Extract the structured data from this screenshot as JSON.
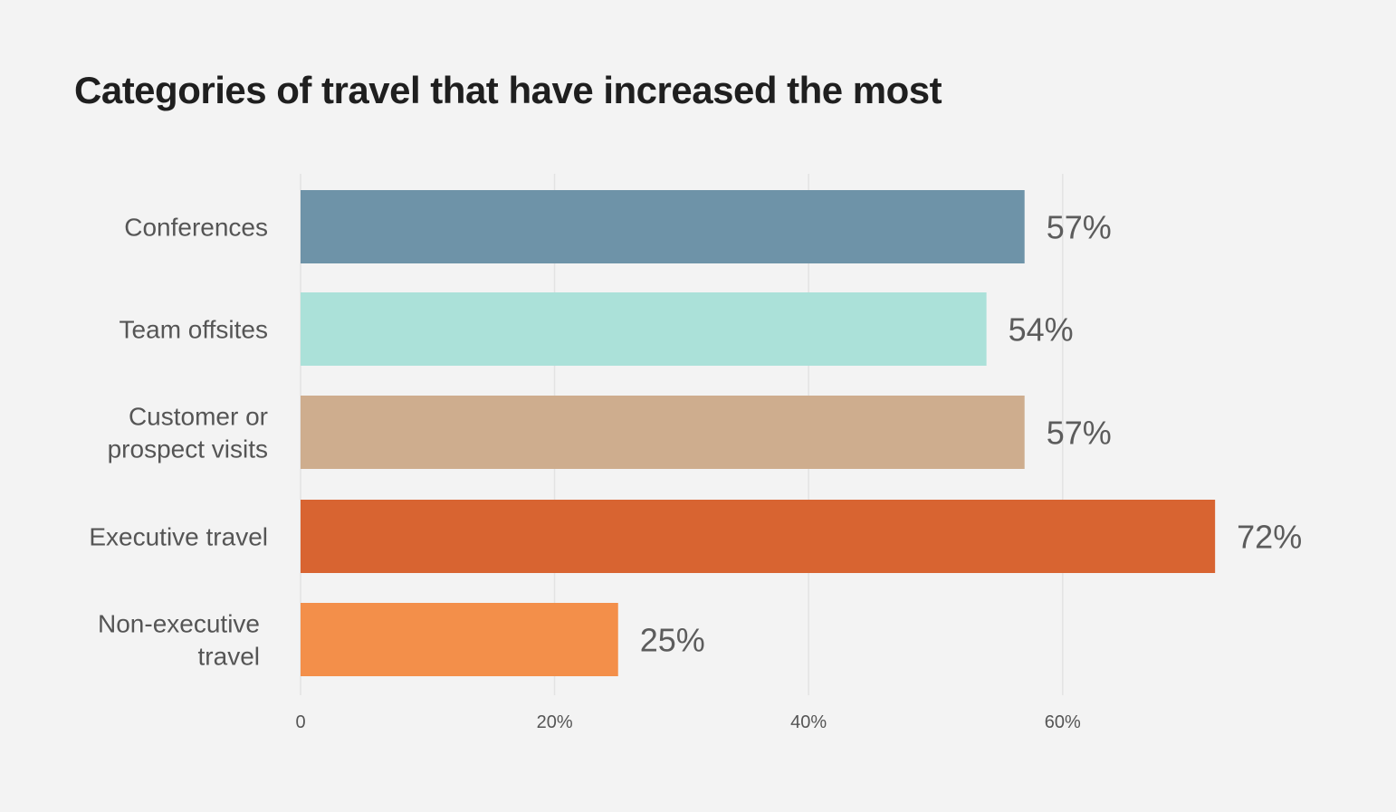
{
  "chart_data": {
    "type": "bar",
    "orientation": "horizontal",
    "title": "Categories of travel that have increased the most",
    "categories": [
      {
        "lines": [
          "Conferences"
        ]
      },
      {
        "lines": [
          "Team offsites"
        ]
      },
      {
        "lines": [
          "Customer or",
          "prospect visits"
        ]
      },
      {
        "lines": [
          "Executive travel"
        ]
      },
      {
        "lines": [
          "Non-executive",
          "travel"
        ]
      }
    ],
    "values": [
      57,
      54,
      57,
      72,
      25
    ],
    "value_labels": [
      "57%",
      "54%",
      "57%",
      "72%",
      "25%"
    ],
    "colors": [
      "#6e93a8",
      "#abe1d9",
      "#cead8e",
      "#d86431",
      "#f38f4a"
    ],
    "xlim": [
      0,
      80
    ],
    "x_ticks": [
      {
        "value": 0,
        "label": "0"
      },
      {
        "value": 20,
        "label": "20%"
      },
      {
        "value": 40,
        "label": "40%"
      },
      {
        "value": 60,
        "label": "60%"
      }
    ],
    "grid": true,
    "xlabel": "",
    "ylabel": ""
  }
}
